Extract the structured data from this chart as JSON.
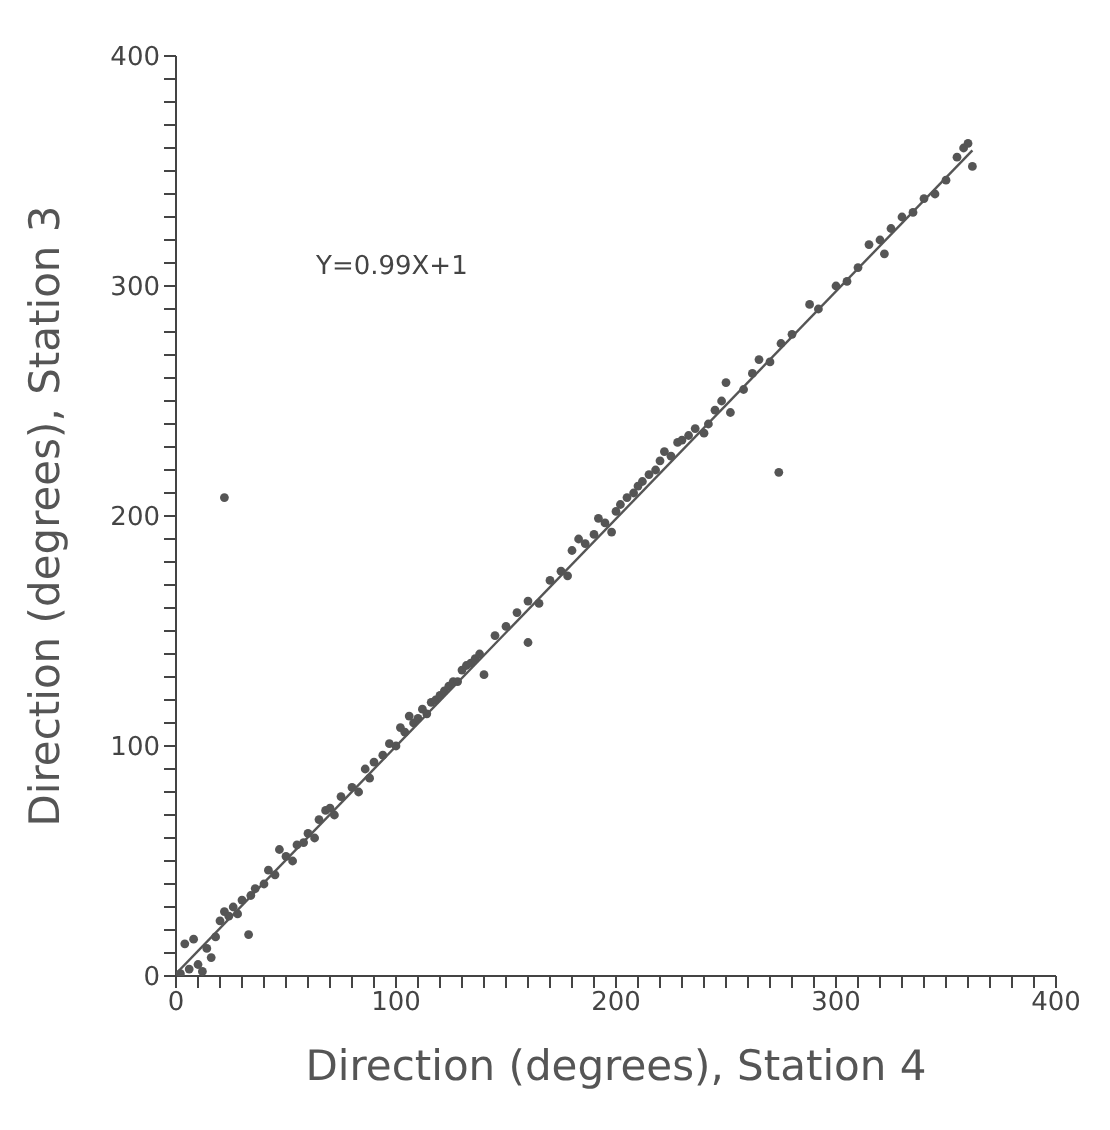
{
  "chart_data": {
    "type": "scatter",
    "xlabel": "Direction (degrees), Station 4",
    "ylabel": "Direction (degrees), Station 3",
    "annotations": [
      "Y=0.99X+1"
    ],
    "xlim": [
      0,
      400
    ],
    "ylim": [
      0,
      400
    ],
    "xticks": [
      0,
      {
        "value": 10,
        "label": null
      },
      {
        "value": 20,
        "label": null
      },
      {
        "value": 30,
        "label": null
      },
      {
        "value": 40,
        "label": null
      },
      {
        "value": 50,
        "label": null
      },
      {
        "value": 60,
        "label": null
      },
      {
        "value": 70,
        "label": null
      },
      {
        "value": 80,
        "label": null
      },
      {
        "value": 90,
        "label": null
      },
      100,
      {
        "value": 110,
        "label": null
      },
      {
        "value": 120,
        "label": null
      },
      {
        "value": 130,
        "label": null
      },
      {
        "value": 140,
        "label": null
      },
      {
        "value": 150,
        "label": null
      },
      {
        "value": 160,
        "label": null
      },
      {
        "value": 170,
        "label": null
      },
      {
        "value": 180,
        "label": null
      },
      {
        "value": 190,
        "label": null
      },
      200,
      {
        "value": 210,
        "label": null
      },
      {
        "value": 220,
        "label": null
      },
      {
        "value": 230,
        "label": null
      },
      {
        "value": 240,
        "label": null
      },
      {
        "value": 250,
        "label": null
      },
      {
        "value": 260,
        "label": null
      },
      {
        "value": 270,
        "label": null
      },
      {
        "value": 280,
        "label": null
      },
      {
        "value": 290,
        "label": null
      },
      300,
      {
        "value": 310,
        "label": null
      },
      {
        "value": 320,
        "label": null
      },
      {
        "value": 330,
        "label": null
      },
      {
        "value": 340,
        "label": null
      },
      {
        "value": 350,
        "label": null
      },
      {
        "value": 360,
        "label": null
      },
      {
        "value": 370,
        "label": null
      },
      {
        "value": 380,
        "label": null
      },
      {
        "value": 390,
        "label": null
      },
      400
    ],
    "yticks": [
      0,
      {
        "value": 10,
        "label": null
      },
      {
        "value": 20,
        "label": null
      },
      {
        "value": 30,
        "label": null
      },
      {
        "value": 40,
        "label": null
      },
      {
        "value": 50,
        "label": null
      },
      {
        "value": 60,
        "label": null
      },
      {
        "value": 70,
        "label": null
      },
      {
        "value": 80,
        "label": null
      },
      {
        "value": 90,
        "label": null
      },
      100,
      {
        "value": 110,
        "label": null
      },
      {
        "value": 120,
        "label": null
      },
      {
        "value": 130,
        "label": null
      },
      {
        "value": 140,
        "label": null
      },
      {
        "value": 150,
        "label": null
      },
      {
        "value": 160,
        "label": null
      },
      {
        "value": 170,
        "label": null
      },
      {
        "value": 180,
        "label": null
      },
      {
        "value": 190,
        "label": null
      },
      200,
      {
        "value": 210,
        "label": null
      },
      {
        "value": 220,
        "label": null
      },
      {
        "value": 230,
        "label": null
      },
      {
        "value": 240,
        "label": null
      },
      {
        "value": 250,
        "label": null
      },
      {
        "value": 260,
        "label": null
      },
      {
        "value": 270,
        "label": null
      },
      {
        "value": 280,
        "label": null
      },
      {
        "value": 290,
        "label": null
      },
      300,
      {
        "value": 310,
        "label": null
      },
      {
        "value": 320,
        "label": null
      },
      {
        "value": 330,
        "label": null
      },
      {
        "value": 340,
        "label": null
      },
      {
        "value": 350,
        "label": null
      },
      {
        "value": 360,
        "label": null
      },
      {
        "value": 370,
        "label": null
      },
      {
        "value": 380,
        "label": null
      },
      {
        "value": 390,
        "label": null
      },
      400
    ],
    "grid": false,
    "series": [
      {
        "marker": "circle",
        "color": "#555555",
        "x": [
          2,
          4,
          6,
          8,
          10,
          12,
          14,
          16,
          18,
          20,
          22,
          24,
          26,
          28,
          30,
          33,
          34,
          36,
          40,
          42,
          45,
          47,
          50,
          53,
          55,
          58,
          60,
          63,
          65,
          68,
          70,
          72,
          75,
          80,
          83,
          86,
          88,
          90,
          94,
          97,
          100,
          102,
          104,
          106,
          108,
          110,
          112,
          114,
          116,
          118,
          120,
          122,
          124,
          126,
          128,
          130,
          132,
          134,
          136,
          138,
          140,
          145,
          150,
          155,
          160,
          160,
          165,
          170,
          175,
          178,
          180,
          183,
          186,
          190,
          192,
          195,
          198,
          200,
          202,
          205,
          208,
          210,
          212,
          215,
          218,
          220,
          222,
          225,
          228,
          230,
          233,
          236,
          240,
          242,
          245,
          248,
          250,
          252,
          258,
          262,
          265,
          270,
          275,
          280,
          288,
          292,
          300,
          305,
          310,
          315,
          320,
          322,
          325,
          330,
          335,
          340,
          345,
          350,
          355,
          358,
          360,
          362,
          22,
          274
        ],
        "values": [
          1,
          14,
          3,
          16,
          5,
          2,
          12,
          8,
          17,
          24,
          28,
          26,
          30,
          27,
          33,
          18,
          35,
          38,
          40,
          46,
          44,
          55,
          52,
          50,
          57,
          58,
          62,
          60,
          68,
          72,
          73,
          70,
          78,
          82,
          80,
          90,
          86,
          93,
          96,
          101,
          100,
          108,
          106,
          113,
          110,
          112,
          116,
          114,
          119,
          120,
          122,
          124,
          126,
          128,
          128,
          133,
          135,
          136,
          138,
          140,
          131,
          148,
          152,
          158,
          145,
          163,
          162,
          172,
          176,
          174,
          185,
          190,
          188,
          192,
          199,
          197,
          193,
          202,
          205,
          208,
          210,
          213,
          215,
          218,
          220,
          224,
          228,
          226,
          232,
          233,
          235,
          238,
          236,
          240,
          246,
          250,
          258,
          245,
          255,
          262,
          268,
          267,
          275,
          279,
          292,
          290,
          300,
          302,
          308,
          318,
          320,
          314,
          325,
          330,
          332,
          338,
          340,
          346,
          356,
          360,
          362,
          352,
          208,
          219
        ]
      },
      {
        "type": "line",
        "marker": "none",
        "color": "#555555",
        "x": [
          0,
          362
        ],
        "values": [
          1,
          359
        ]
      }
    ]
  }
}
